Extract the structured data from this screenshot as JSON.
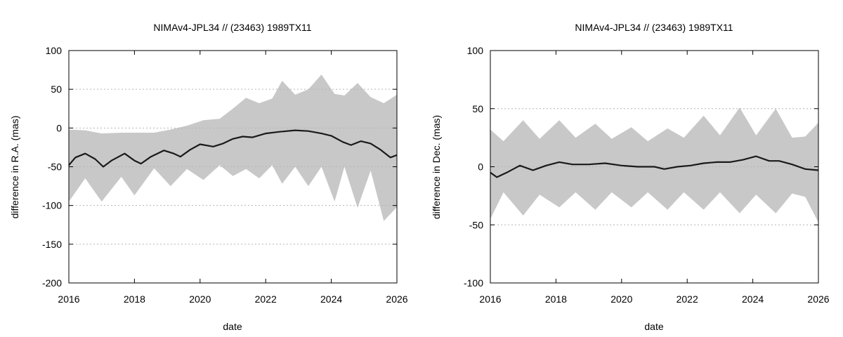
{
  "chart_data": [
    {
      "type": "line",
      "title": "NIMAv4-JPL34 // (23463) 1989TX11",
      "xlabel": "date",
      "ylabel": "difference in R.A. (mas)",
      "xlim": [
        2016,
        2026
      ],
      "ylim": [
        -200,
        100
      ],
      "xticks": [
        2016,
        2018,
        2020,
        2022,
        2024,
        2026
      ],
      "yticks": [
        -200,
        -150,
        -100,
        -50,
        0,
        50,
        100
      ],
      "grid": "horizontal-dotted",
      "uncertainty_band": {
        "color": "#c8c8c8",
        "x": [
          2016.0,
          2016.5,
          2017.0,
          2017.6,
          2018.0,
          2018.6,
          2019.1,
          2019.6,
          2020.1,
          2020.6,
          2021.0,
          2021.4,
          2021.8,
          2022.2,
          2022.5,
          2022.9,
          2023.3,
          2023.7,
          2024.1,
          2024.4,
          2024.8,
          2025.2,
          2025.6,
          2026.0
        ],
        "upper": [
          -2,
          -3,
          -7,
          -6,
          -6,
          -6,
          -2,
          3,
          10,
          12,
          25,
          39,
          32,
          38,
          61,
          43,
          50,
          69,
          44,
          42,
          58,
          40,
          32,
          43
        ],
        "lower": [
          -95,
          -65,
          -95,
          -63,
          -87,
          -52,
          -75,
          -53,
          -67,
          -48,
          -62,
          -53,
          -65,
          -48,
          -72,
          -50,
          -75,
          -50,
          -95,
          -50,
          -103,
          -55,
          -120,
          -102
        ]
      },
      "series": [
        {
          "color": "#1a1a1a",
          "x": [
            2016.0,
            2016.2,
            2016.5,
            2016.8,
            2017.05,
            2017.3,
            2017.7,
            2018.0,
            2018.2,
            2018.5,
            2018.9,
            2019.2,
            2019.4,
            2019.7,
            2020.0,
            2020.4,
            2020.7,
            2021.0,
            2021.3,
            2021.6,
            2022.0,
            2022.4,
            2022.9,
            2023.3,
            2023.7,
            2024.0,
            2024.35,
            2024.6,
            2024.9,
            2025.2,
            2025.5,
            2025.8,
            2026.0
          ],
          "y": [
            -48,
            -38,
            -33,
            -40,
            -50,
            -42,
            -33,
            -42,
            -46,
            -37,
            -29,
            -33,
            -37,
            -28,
            -21,
            -24,
            -20,
            -14,
            -11,
            -12,
            -7,
            -5,
            -3,
            -4,
            -7,
            -10,
            -18,
            -22,
            -17,
            -20,
            -28,
            -38,
            -35
          ]
        }
      ]
    },
    {
      "type": "line",
      "title": "NIMAv4-JPL34 // (23463) 1989TX11",
      "xlabel": "date",
      "ylabel": "difference in Dec. (mas)",
      "xlim": [
        2016,
        2026
      ],
      "ylim": [
        -100,
        100
      ],
      "xticks": [
        2016,
        2018,
        2020,
        2022,
        2024,
        2026
      ],
      "yticks": [
        -100,
        -50,
        0,
        50,
        100
      ],
      "grid": "horizontal-dotted",
      "uncertainty_band": {
        "color": "#c8c8c8",
        "x": [
          2016.0,
          2016.4,
          2017.0,
          2017.5,
          2018.1,
          2018.6,
          2019.2,
          2019.7,
          2020.3,
          2020.8,
          2021.4,
          2021.9,
          2022.5,
          2023.0,
          2023.6,
          2024.1,
          2024.7,
          2025.2,
          2025.6,
          2026.0
        ],
        "upper": [
          32,
          22,
          40,
          24,
          40,
          25,
          37,
          24,
          34,
          22,
          33,
          25,
          44,
          27,
          51,
          27,
          50,
          25,
          26,
          38
        ],
        "lower": [
          -45,
          -22,
          -42,
          -24,
          -35,
          -22,
          -37,
          -22,
          -35,
          -22,
          -37,
          -22,
          -37,
          -22,
          -40,
          -24,
          -40,
          -23,
          -26,
          -48
        ]
      },
      "series": [
        {
          "color": "#1a1a1a",
          "x": [
            2016.0,
            2016.2,
            2016.5,
            2016.9,
            2017.3,
            2017.7,
            2018.1,
            2018.5,
            2019.0,
            2019.5,
            2020.0,
            2020.5,
            2021.0,
            2021.3,
            2021.7,
            2022.1,
            2022.5,
            2022.9,
            2023.3,
            2023.7,
            2024.1,
            2024.5,
            2024.8,
            2025.2,
            2025.6,
            2026.0
          ],
          "y": [
            -5,
            -9,
            -5,
            1,
            -3,
            1,
            4,
            2,
            2,
            3,
            1,
            0,
            0,
            -2,
            0,
            1,
            3,
            4,
            4,
            6,
            9,
            5,
            5,
            2,
            -2,
            -3
          ]
        }
      ]
    }
  ]
}
